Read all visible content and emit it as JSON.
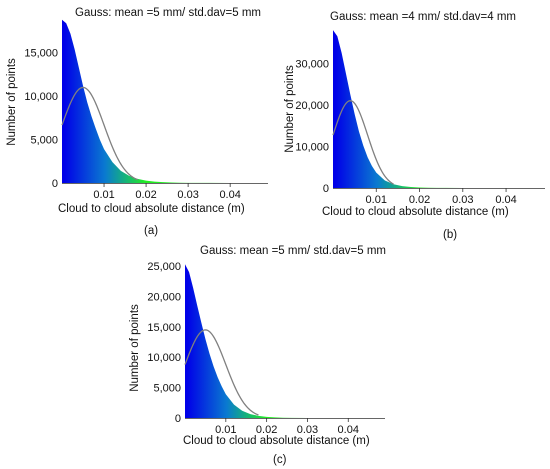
{
  "chart_data": [
    {
      "type": "area",
      "id": "a",
      "title": "Gauss: mean =5 mm/ std.dav=5 mm",
      "xlabel": "Cloud to cloud absolute distance (m)",
      "ylabel": "Number of points",
      "caption": "(a)",
      "xlim": [
        0,
        0.049
      ],
      "ylim": [
        0,
        19000
      ],
      "xticks": [
        0.01,
        0.02,
        0.03,
        0.04
      ],
      "xtick_labels": [
        "0.01",
        "0.02",
        "0.03",
        "0.04"
      ],
      "yticks": [
        0,
        5000,
        10000,
        15000
      ],
      "ytick_labels": [
        "0",
        "5,000",
        "10,000",
        "15,000"
      ],
      "histogram": {
        "x": [
          0,
          0.001,
          0.002,
          0.003,
          0.004,
          0.005,
          0.006,
          0.007,
          0.008,
          0.009,
          0.01,
          0.012,
          0.014,
          0.016,
          0.018,
          0.02,
          0.022,
          0.024,
          0.026,
          0.028,
          0.03,
          0.035,
          0.04,
          0.049
        ],
        "y": [
          18800,
          18400,
          17200,
          15400,
          13300,
          11200,
          9300,
          7700,
          6300,
          5000,
          3900,
          2400,
          1400,
          820,
          470,
          270,
          160,
          95,
          55,
          35,
          20,
          8,
          3,
          0
        ]
      },
      "gauss_curve": {
        "mean": 0.005,
        "std": 0.005,
        "peak": 11000,
        "x_range": [
          0,
          0.018
        ]
      }
    },
    {
      "type": "area",
      "id": "b",
      "title": "Gauss: mean =4 mm/ std.dav=4 mm",
      "xlabel": "Cloud to cloud absolute distance (m)",
      "ylabel": "Number of points",
      "caption": "(b)",
      "xlim": [
        0,
        0.049
      ],
      "ylim": [
        0,
        38500
      ],
      "xticks": [
        0.01,
        0.02,
        0.03,
        0.04
      ],
      "xtick_labels": [
        "0.01",
        "0.02",
        "0.03",
        "0.04"
      ],
      "yticks": [
        0,
        10000,
        20000,
        30000
      ],
      "ytick_labels": [
        "0",
        "10,000",
        "20,000",
        "30,000"
      ],
      "histogram": {
        "x": [
          0,
          0.001,
          0.002,
          0.003,
          0.004,
          0.005,
          0.006,
          0.007,
          0.008,
          0.009,
          0.01,
          0.012,
          0.014,
          0.016,
          0.018,
          0.02,
          0.022,
          0.024,
          0.026,
          0.03,
          0.035,
          0.049
        ],
        "y": [
          38000,
          36500,
          32500,
          27500,
          22500,
          17800,
          13600,
          10200,
          7400,
          5300,
          3700,
          1800,
          900,
          450,
          230,
          120,
          65,
          35,
          20,
          8,
          3,
          0
        ]
      },
      "gauss_curve": {
        "mean": 0.004,
        "std": 0.004,
        "peak": 21000,
        "x_range": [
          0,
          0.014
        ]
      }
    },
    {
      "type": "area",
      "id": "c",
      "title": "Gauss: mean =5 mm/ std.dav=5 mm",
      "xlabel": "Cloud to cloud absolute distance (m)",
      "ylabel": "Number of points",
      "caption": "(c)",
      "xlim": [
        0,
        0.049
      ],
      "ylim": [
        0,
        26000
      ],
      "xticks": [
        0.01,
        0.02,
        0.03,
        0.04
      ],
      "xtick_labels": [
        "0.01",
        "0.02",
        "0.03",
        "0.04"
      ],
      "yticks": [
        0,
        5000,
        10000,
        15000,
        20000,
        25000
      ],
      "ytick_labels": [
        "0",
        "5,000",
        "10,000",
        "15,000",
        "20,000",
        "25,000"
      ],
      "histogram": {
        "x": [
          0,
          0.001,
          0.002,
          0.003,
          0.004,
          0.005,
          0.006,
          0.007,
          0.008,
          0.009,
          0.01,
          0.012,
          0.014,
          0.016,
          0.018,
          0.02,
          0.022,
          0.024,
          0.026,
          0.03,
          0.035,
          0.049
        ],
        "y": [
          25300,
          24000,
          21400,
          18500,
          15700,
          13000,
          10600,
          8500,
          6700,
          5200,
          3900,
          2200,
          1200,
          640,
          340,
          180,
          95,
          50,
          28,
          10,
          4,
          0
        ]
      },
      "gauss_curve": {
        "mean": 0.005,
        "std": 0.005,
        "peak": 14500,
        "x_range": [
          0,
          0.018
        ]
      }
    }
  ],
  "colors": {
    "fill_start": "#0000e8",
    "fill_mid": "#0a7ad0",
    "fill_end": "#22ee22",
    "gauss_line": "#808080",
    "axis_line": "#333333"
  }
}
